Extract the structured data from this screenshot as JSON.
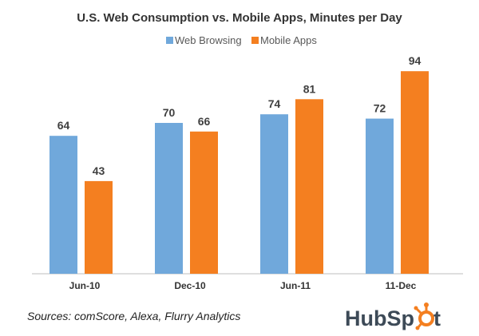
{
  "chart_data": {
    "type": "bar",
    "title": "U.S. Web Consumption vs. Mobile Apps, Minutes per Day",
    "categories": [
      "Jun-10",
      "Dec-10",
      "Jun-11",
      "11-Dec"
    ],
    "series": [
      {
        "name": "Web Browsing",
        "color": "#70a8db",
        "values": [
          64,
          70,
          74,
          72
        ]
      },
      {
        "name": "Mobile Apps",
        "color": "#f47f20",
        "values": [
          43,
          66,
          81,
          94
        ]
      }
    ],
    "ylim": [
      0,
      100
    ],
    "xlabel": "",
    "ylabel": "",
    "grid": false,
    "legend_position": "top-center"
  },
  "source_text": "Sources: comScore, Alexa, Flurry Analytics",
  "logo": {
    "name": "hubspot-logo",
    "text": "HubSpot",
    "color": "#f47f20",
    "text_color": "#3d4a57"
  }
}
